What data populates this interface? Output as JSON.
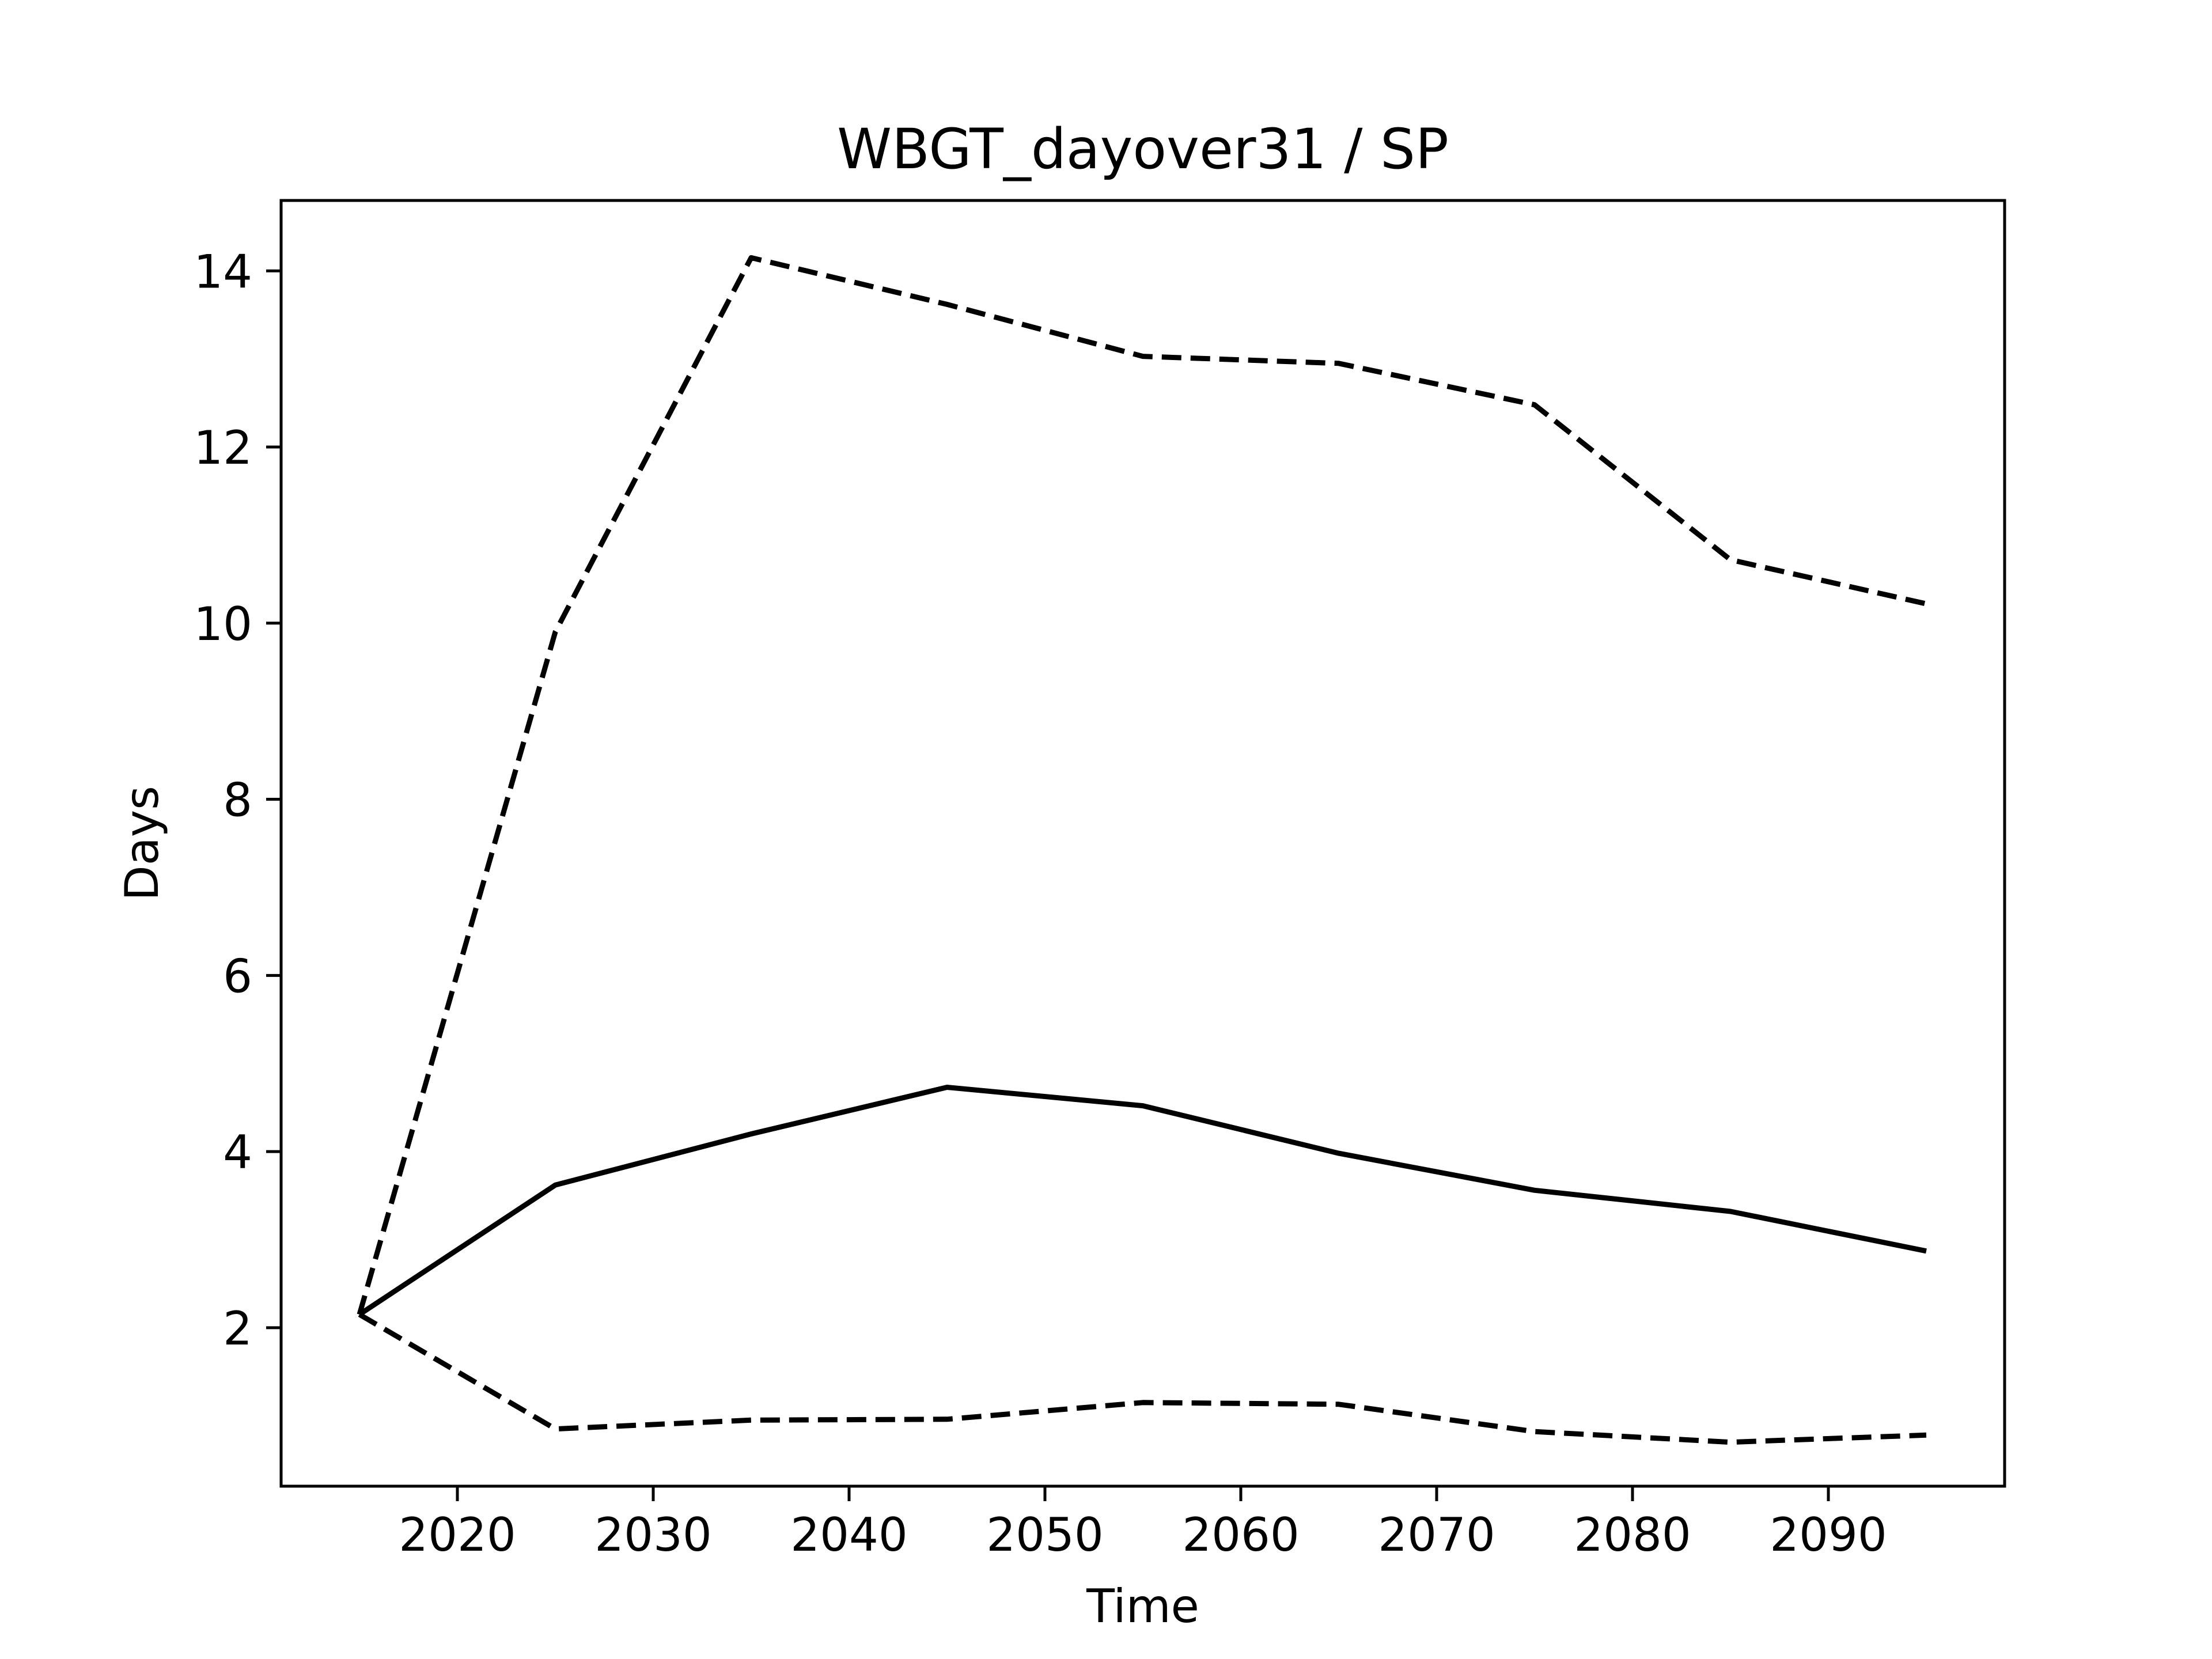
{
  "chart_data": {
    "type": "line",
    "title": "WBGT_dayover31 / SP",
    "xlabel": "Time",
    "ylabel": "Days",
    "xlim": [
      2011,
      2099
    ],
    "ylim": [
      0.2,
      14.8
    ],
    "xticks": [
      2020,
      2030,
      2040,
      2050,
      2060,
      2070,
      2080,
      2090
    ],
    "yticks": [
      2,
      4,
      6,
      8,
      10,
      12,
      14
    ],
    "grid": false,
    "legend": "none",
    "x": [
      2015,
      2025,
      2035,
      2045,
      2055,
      2065,
      2075,
      2085,
      2095
    ],
    "series": [
      {
        "style": "solid",
        "color": "#000000",
        "values": [
          2.15,
          3.62,
          4.2,
          4.73,
          4.52,
          3.98,
          3.56,
          3.32,
          2.87
        ]
      },
      {
        "style": "dashed",
        "color": "#000000",
        "values": [
          2.15,
          9.9,
          14.15,
          13.62,
          13.03,
          12.95,
          12.48,
          10.72,
          10.22
        ]
      },
      {
        "style": "dashed",
        "color": "#000000",
        "values": [
          2.15,
          0.85,
          0.95,
          0.96,
          1.15,
          1.13,
          0.82,
          0.7,
          0.78
        ]
      }
    ]
  }
}
